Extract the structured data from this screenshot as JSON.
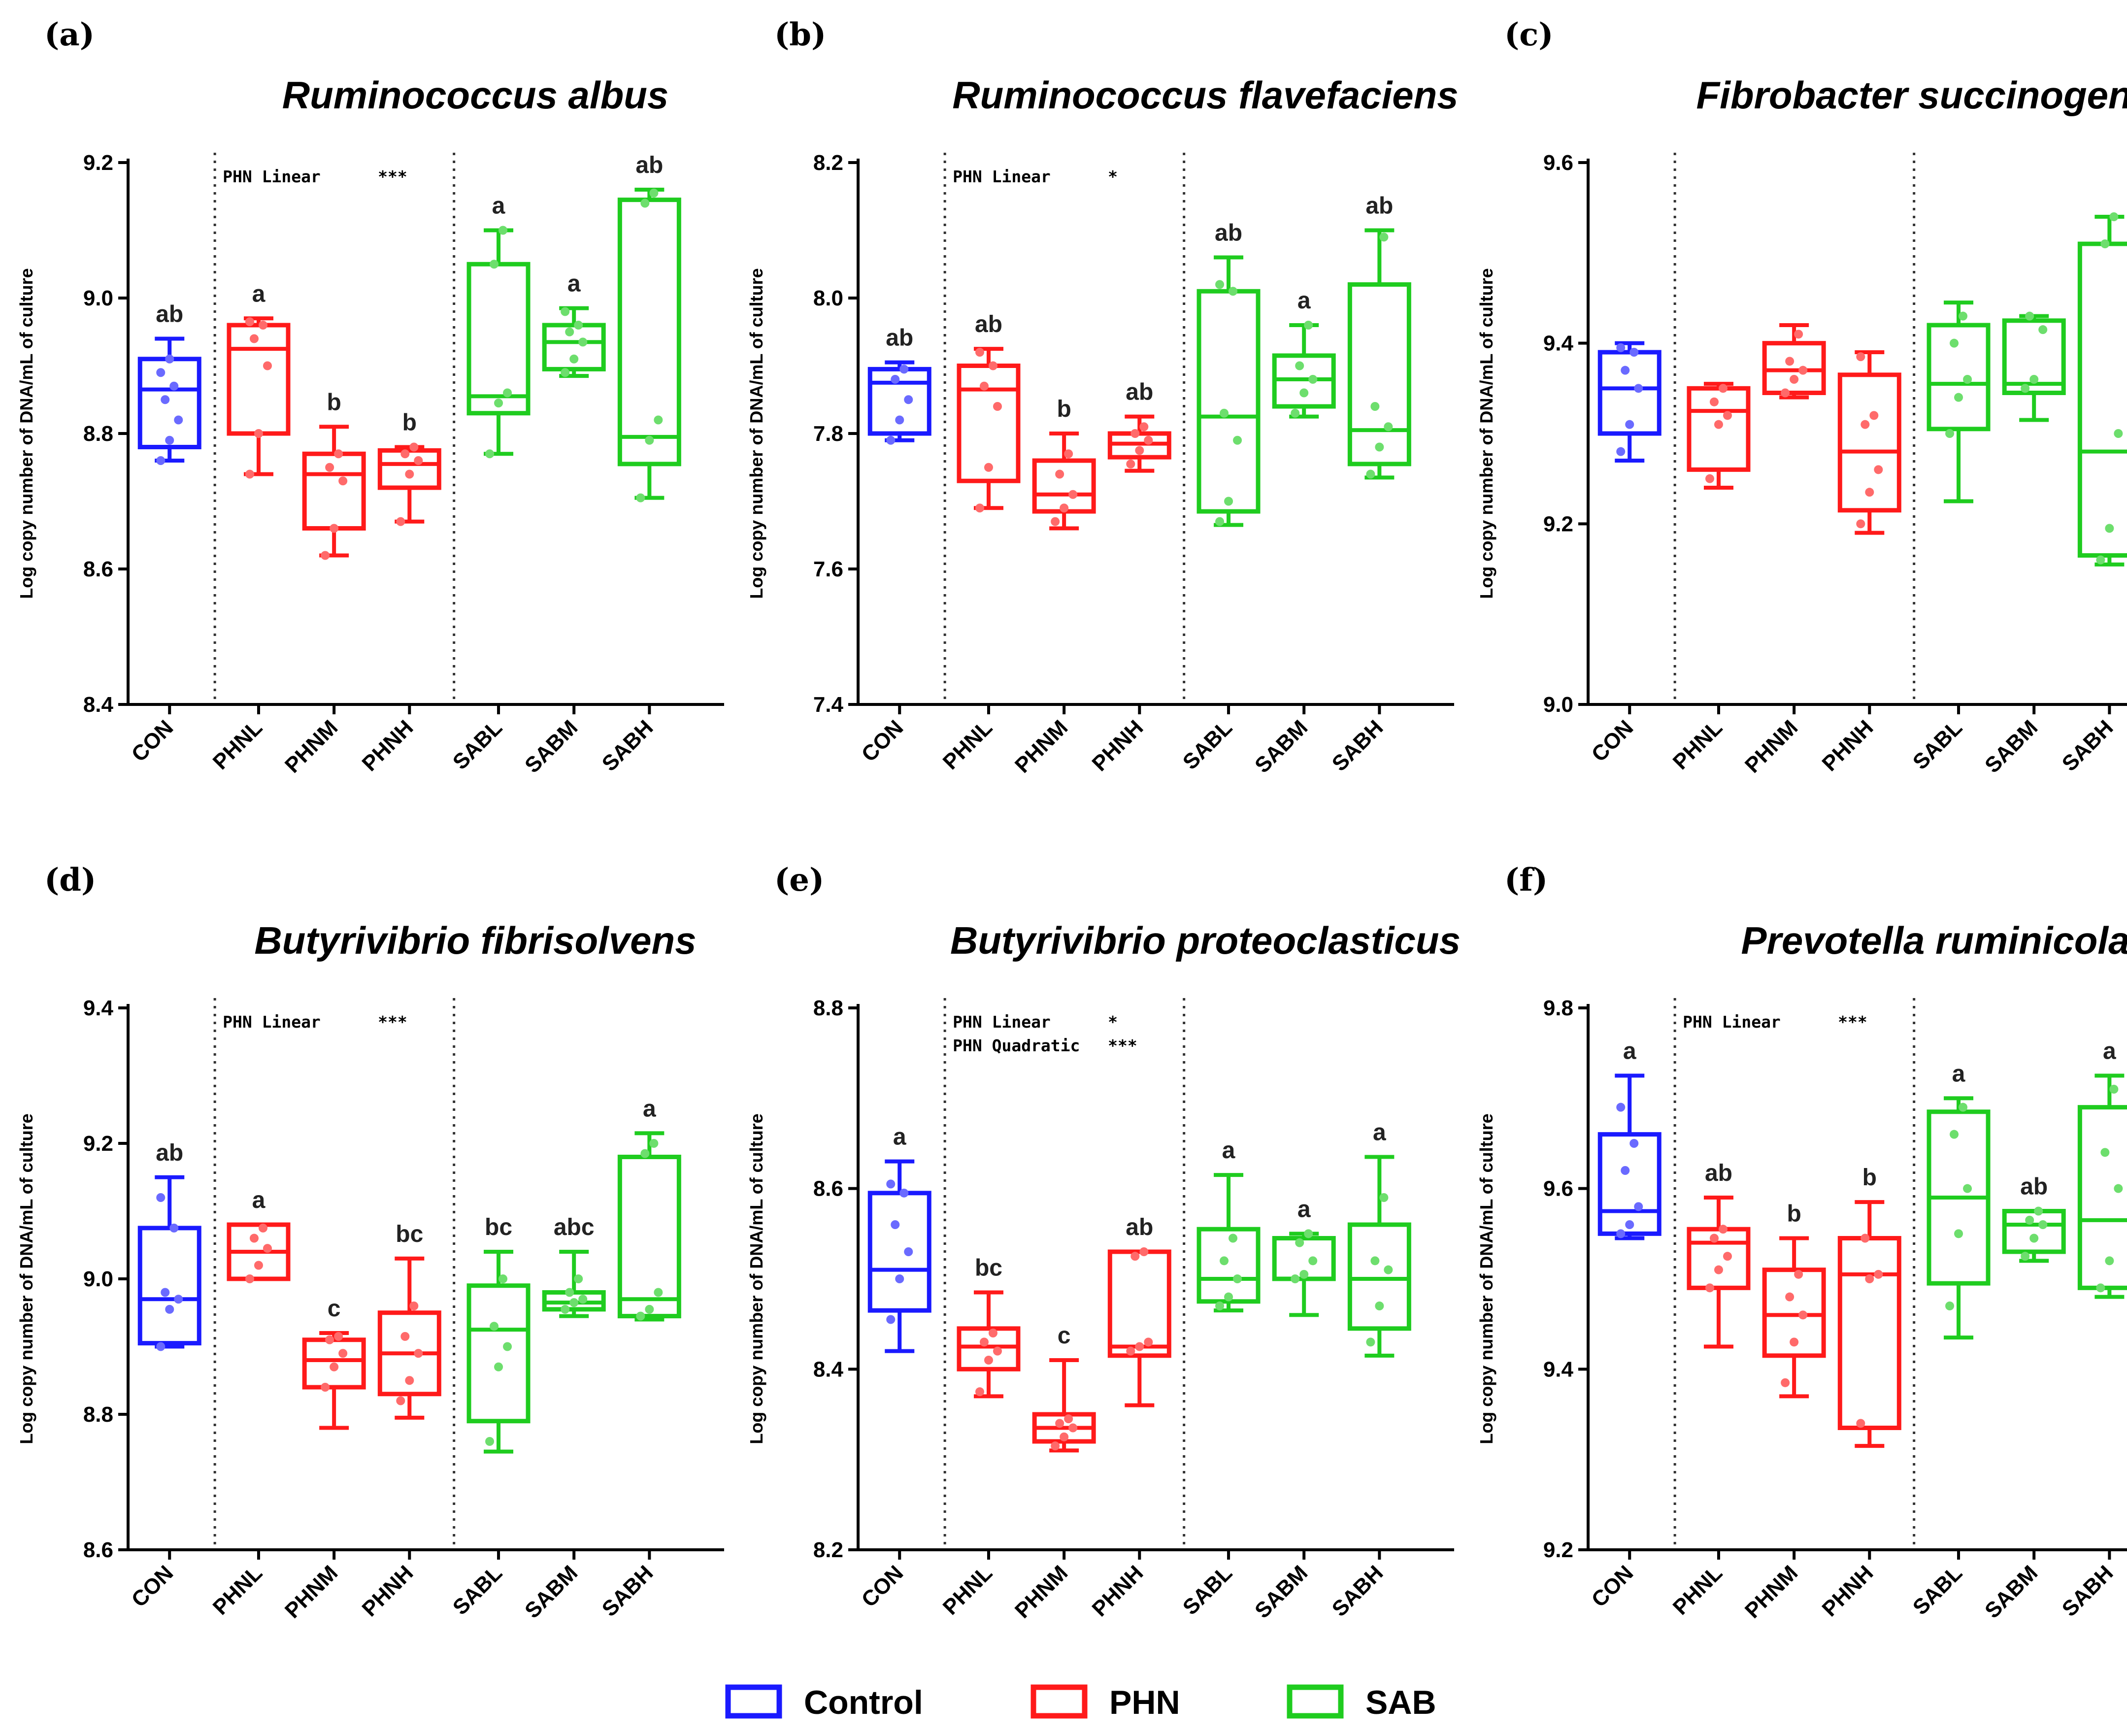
{
  "figure": {
    "y_axis_label": "Log copy number of DNA/mL of culture",
    "groups": {
      "Control": {
        "color": "#1a1aff"
      },
      "PHN": {
        "color": "#ff1a1a"
      },
      "SAB": {
        "color": "#1fcc1f"
      }
    },
    "legend": [
      {
        "name": "Control",
        "color": "#1a1aff"
      },
      {
        "name": "PHN",
        "color": "#ff1a1a"
      },
      {
        "name": "SAB",
        "color": "#1fcc1f"
      }
    ]
  },
  "chart_data": [
    {
      "type": "box",
      "label": "(a)",
      "title": "Ruminococcus albus",
      "ylabel": "Log copy number of DNA/mL of culture",
      "ylim": [
        8.4,
        9.2
      ],
      "yticks": [
        "8.4",
        "8.6",
        "8.8",
        "9.0",
        "9.2"
      ],
      "annotations": [
        {
          "text": "PHN Linear",
          "stars": "***"
        }
      ],
      "categories": [
        {
          "name": "CON",
          "group": "Control",
          "min": 8.76,
          "q1": 8.78,
          "median": 8.865,
          "q3": 8.91,
          "max": 8.94,
          "letter": "ab",
          "points": [
            8.76,
            8.79,
            8.82,
            8.85,
            8.87,
            8.89,
            8.91
          ]
        },
        {
          "name": "PHNL",
          "group": "PHN",
          "min": 8.74,
          "q1": 8.8,
          "median": 8.925,
          "q3": 8.96,
          "max": 8.97,
          "letter": "a",
          "points": [
            8.74,
            8.8,
            8.9,
            8.94,
            8.96,
            8.965
          ]
        },
        {
          "name": "PHNM",
          "group": "PHN",
          "min": 8.62,
          "q1": 8.66,
          "median": 8.74,
          "q3": 8.77,
          "max": 8.81,
          "letter": "b",
          "points": [
            8.62,
            8.66,
            8.73,
            8.75,
            8.77
          ]
        },
        {
          "name": "PHNH",
          "group": "PHN",
          "min": 8.67,
          "q1": 8.72,
          "median": 8.755,
          "q3": 8.775,
          "max": 8.78,
          "letter": "b",
          "points": [
            8.67,
            8.74,
            8.76,
            8.77,
            8.78
          ]
        },
        {
          "name": "SABL",
          "group": "SAB",
          "min": 8.77,
          "q1": 8.83,
          "median": 8.855,
          "q3": 9.05,
          "max": 9.1,
          "letter": "a",
          "points": [
            8.77,
            8.845,
            8.86,
            9.05,
            9.1
          ]
        },
        {
          "name": "SABM",
          "group": "SAB",
          "min": 8.885,
          "q1": 8.895,
          "median": 8.935,
          "q3": 8.96,
          "max": 8.985,
          "letter": "a",
          "points": [
            8.89,
            8.91,
            8.935,
            8.95,
            8.96,
            8.98
          ]
        },
        {
          "name": "SABH",
          "group": "SAB",
          "min": 8.705,
          "q1": 8.755,
          "median": 8.795,
          "q3": 9.145,
          "max": 9.16,
          "letter": "ab",
          "points": [
            8.705,
            8.79,
            8.82,
            9.14,
            9.155
          ]
        }
      ]
    },
    {
      "type": "box",
      "label": "(b)",
      "title": "Ruminococcus flavefaciens",
      "ylabel": "Log copy number of DNA/mL of culture",
      "ylim": [
        7.4,
        8.2
      ],
      "yticks": [
        "7.4",
        "7.6",
        "7.8",
        "8.0",
        "8.2"
      ],
      "annotations": [
        {
          "text": "PHN Linear",
          "stars": "*"
        }
      ],
      "categories": [
        {
          "name": "CON",
          "group": "Control",
          "min": 7.79,
          "q1": 7.8,
          "median": 7.875,
          "q3": 7.895,
          "max": 7.905,
          "letter": "ab",
          "points": [
            7.79,
            7.82,
            7.85,
            7.88,
            7.895
          ]
        },
        {
          "name": "PHNL",
          "group": "PHN",
          "min": 7.69,
          "q1": 7.73,
          "median": 7.865,
          "q3": 7.9,
          "max": 7.925,
          "letter": "ab",
          "points": [
            7.69,
            7.75,
            7.84,
            7.87,
            7.9,
            7.92
          ]
        },
        {
          "name": "PHNM",
          "group": "PHN",
          "min": 7.66,
          "q1": 7.685,
          "median": 7.71,
          "q3": 7.76,
          "max": 7.8,
          "letter": "b",
          "points": [
            7.67,
            7.69,
            7.71,
            7.74,
            7.77
          ]
        },
        {
          "name": "PHNH",
          "group": "PHN",
          "min": 7.745,
          "q1": 7.765,
          "median": 7.785,
          "q3": 7.8,
          "max": 7.825,
          "letter": "ab",
          "points": [
            7.755,
            7.775,
            7.79,
            7.8,
            7.81
          ]
        },
        {
          "name": "SABL",
          "group": "SAB",
          "min": 7.665,
          "q1": 7.685,
          "median": 7.825,
          "q3": 8.01,
          "max": 8.06,
          "letter": "ab",
          "points": [
            7.67,
            7.7,
            7.79,
            7.83,
            8.01,
            8.02
          ]
        },
        {
          "name": "SABM",
          "group": "SAB",
          "min": 7.825,
          "q1": 7.84,
          "median": 7.88,
          "q3": 7.915,
          "max": 7.96,
          "letter": "a",
          "points": [
            7.83,
            7.86,
            7.88,
            7.9,
            7.96
          ]
        },
        {
          "name": "SABH",
          "group": "SAB",
          "min": 7.735,
          "q1": 7.755,
          "median": 7.805,
          "q3": 8.02,
          "max": 8.1,
          "letter": "ab",
          "points": [
            7.74,
            7.78,
            7.81,
            7.84,
            8.09
          ]
        }
      ]
    },
    {
      "type": "box",
      "label": "(c)",
      "title": "Fibrobacter succinogenes",
      "ylabel": "Log copy number of DNA/mL of culture",
      "ylim": [
        9.0,
        9.6
      ],
      "yticks": [
        "9.0",
        "9.2",
        "9.4",
        "9.6"
      ],
      "annotations": [],
      "categories": [
        {
          "name": "CON",
          "group": "Control",
          "min": 9.27,
          "q1": 9.3,
          "median": 9.35,
          "q3": 9.39,
          "max": 9.4,
          "letter": "",
          "points": [
            9.28,
            9.31,
            9.35,
            9.37,
            9.39,
            9.395
          ]
        },
        {
          "name": "PHNL",
          "group": "PHN",
          "min": 9.24,
          "q1": 9.26,
          "median": 9.325,
          "q3": 9.35,
          "max": 9.355,
          "letter": "",
          "points": [
            9.25,
            9.31,
            9.32,
            9.335,
            9.35
          ]
        },
        {
          "name": "PHNM",
          "group": "PHN",
          "min": 9.34,
          "q1": 9.345,
          "median": 9.37,
          "q3": 9.4,
          "max": 9.42,
          "letter": "",
          "points": [
            9.345,
            9.36,
            9.37,
            9.38,
            9.41
          ]
        },
        {
          "name": "PHNH",
          "group": "PHN",
          "min": 9.19,
          "q1": 9.215,
          "median": 9.28,
          "q3": 9.365,
          "max": 9.39,
          "letter": "",
          "points": [
            9.2,
            9.235,
            9.26,
            9.31,
            9.32,
            9.385
          ]
        },
        {
          "name": "SABL",
          "group": "SAB",
          "min": 9.225,
          "q1": 9.305,
          "median": 9.355,
          "q3": 9.42,
          "max": 9.445,
          "letter": "",
          "points": [
            9.3,
            9.34,
            9.36,
            9.4,
            9.43
          ]
        },
        {
          "name": "SABM",
          "group": "SAB",
          "min": 9.315,
          "q1": 9.345,
          "median": 9.355,
          "q3": 9.425,
          "max": 9.43,
          "letter": "",
          "points": [
            9.35,
            9.36,
            9.415,
            9.43
          ]
        },
        {
          "name": "SABH",
          "group": "SAB",
          "min": 9.155,
          "q1": 9.165,
          "median": 9.28,
          "q3": 9.51,
          "max": 9.54,
          "letter": "",
          "points": [
            9.16,
            9.195,
            9.3,
            9.51,
            9.54
          ]
        }
      ]
    },
    {
      "type": "box",
      "label": "(d)",
      "title": "Butyrivibrio fibrisolvens",
      "ylabel": "Log copy number of DNA/mL of culture",
      "ylim": [
        8.6,
        9.4
      ],
      "yticks": [
        "8.6",
        "8.8",
        "9.0",
        "9.2",
        "9.4"
      ],
      "annotations": [
        {
          "text": "PHN Linear",
          "stars": "***"
        }
      ],
      "categories": [
        {
          "name": "CON",
          "group": "Control",
          "min": 8.9,
          "q1": 8.905,
          "median": 8.97,
          "q3": 9.075,
          "max": 9.15,
          "letter": "ab",
          "points": [
            8.9,
            8.955,
            8.97,
            8.98,
            9.075,
            9.12
          ]
        },
        {
          "name": "PHNL",
          "group": "PHN",
          "min": 9.0,
          "q1": 9.0,
          "median": 9.04,
          "q3": 9.08,
          "max": 9.08,
          "letter": "a",
          "points": [
            9.0,
            9.02,
            9.045,
            9.06,
            9.075
          ]
        },
        {
          "name": "PHNM",
          "group": "PHN",
          "min": 8.78,
          "q1": 8.84,
          "median": 8.88,
          "q3": 8.91,
          "max": 8.92,
          "letter": "c",
          "points": [
            8.84,
            8.87,
            8.89,
            8.91,
            8.915
          ]
        },
        {
          "name": "PHNH",
          "group": "PHN",
          "min": 8.795,
          "q1": 8.83,
          "median": 8.89,
          "q3": 8.95,
          "max": 9.03,
          "letter": "bc",
          "points": [
            8.82,
            8.85,
            8.89,
            8.915,
            8.96
          ]
        },
        {
          "name": "SABL",
          "group": "SAB",
          "min": 8.745,
          "q1": 8.79,
          "median": 8.925,
          "q3": 8.99,
          "max": 9.04,
          "letter": "bc",
          "points": [
            8.76,
            8.87,
            8.9,
            8.93,
            9.0
          ]
        },
        {
          "name": "SABM",
          "group": "SAB",
          "min": 8.945,
          "q1": 8.955,
          "median": 8.965,
          "q3": 8.98,
          "max": 9.04,
          "letter": "abc",
          "points": [
            8.955,
            8.965,
            8.97,
            8.98,
            9.0
          ]
        },
        {
          "name": "SABH",
          "group": "SAB",
          "min": 8.94,
          "q1": 8.945,
          "median": 8.97,
          "q3": 9.18,
          "max": 9.215,
          "letter": "a",
          "points": [
            8.945,
            8.955,
            8.98,
            9.185,
            9.2
          ]
        }
      ]
    },
    {
      "type": "box",
      "label": "(e)",
      "title": "Butyrivibrio proteoclasticus",
      "ylabel": "Log copy number of DNA/mL of culture",
      "ylim": [
        8.2,
        8.8
      ],
      "yticks": [
        "8.2",
        "8.4",
        "8.6",
        "8.8"
      ],
      "annotations": [
        {
          "text": "PHN Linear",
          "stars": "*"
        },
        {
          "text": "PHN Quadratic",
          "stars": "***"
        }
      ],
      "categories": [
        {
          "name": "CON",
          "group": "Control",
          "min": 8.42,
          "q1": 8.465,
          "median": 8.51,
          "q3": 8.595,
          "max": 8.63,
          "letter": "a",
          "points": [
            8.455,
            8.5,
            8.53,
            8.56,
            8.595,
            8.605
          ]
        },
        {
          "name": "PHNL",
          "group": "PHN",
          "min": 8.37,
          "q1": 8.4,
          "median": 8.425,
          "q3": 8.445,
          "max": 8.485,
          "letter": "bc",
          "points": [
            8.375,
            8.41,
            8.42,
            8.43,
            8.44
          ]
        },
        {
          "name": "PHNM",
          "group": "PHN",
          "min": 8.31,
          "q1": 8.32,
          "median": 8.335,
          "q3": 8.35,
          "max": 8.41,
          "letter": "c",
          "points": [
            8.315,
            8.325,
            8.335,
            8.34,
            8.345
          ]
        },
        {
          "name": "PHNH",
          "group": "PHN",
          "min": 8.36,
          "q1": 8.415,
          "median": 8.425,
          "q3": 8.53,
          "max": 8.53,
          "letter": "ab",
          "points": [
            8.42,
            8.425,
            8.43,
            8.525,
            8.53
          ]
        },
        {
          "name": "SABL",
          "group": "SAB",
          "min": 8.465,
          "q1": 8.475,
          "median": 8.5,
          "q3": 8.555,
          "max": 8.615,
          "letter": "a",
          "points": [
            8.47,
            8.48,
            8.5,
            8.52,
            8.545
          ]
        },
        {
          "name": "SABM",
          "group": "SAB",
          "min": 8.46,
          "q1": 8.5,
          "median": 8.5,
          "q3": 8.545,
          "max": 8.55,
          "letter": "a",
          "points": [
            8.5,
            8.505,
            8.52,
            8.54,
            8.55
          ]
        },
        {
          "name": "SABH",
          "group": "SAB",
          "min": 8.415,
          "q1": 8.445,
          "median": 8.5,
          "q3": 8.56,
          "max": 8.635,
          "letter": "a",
          "points": [
            8.43,
            8.47,
            8.51,
            8.52,
            8.59
          ]
        }
      ]
    },
    {
      "type": "box",
      "label": "(f)",
      "title": "Prevotella ruminicola",
      "ylabel": "Log copy number of DNA/mL of culture",
      "ylim": [
        9.2,
        9.8
      ],
      "yticks": [
        "9.2",
        "9.4",
        "9.6",
        "9.8"
      ],
      "annotations": [
        {
          "text": "PHN Linear",
          "stars": "***"
        }
      ],
      "categories": [
        {
          "name": "CON",
          "group": "Control",
          "min": 9.545,
          "q1": 9.55,
          "median": 9.575,
          "q3": 9.66,
          "max": 9.725,
          "letter": "a",
          "points": [
            9.55,
            9.56,
            9.58,
            9.62,
            9.65,
            9.69
          ]
        },
        {
          "name": "PHNL",
          "group": "PHN",
          "min": 9.425,
          "q1": 9.49,
          "median": 9.54,
          "q3": 9.555,
          "max": 9.59,
          "letter": "ab",
          "points": [
            9.49,
            9.51,
            9.525,
            9.545,
            9.555
          ]
        },
        {
          "name": "PHNM",
          "group": "PHN",
          "min": 9.37,
          "q1": 9.415,
          "median": 9.46,
          "q3": 9.51,
          "max": 9.545,
          "letter": "b",
          "points": [
            9.385,
            9.43,
            9.46,
            9.48,
            9.505
          ]
        },
        {
          "name": "PHNH",
          "group": "PHN",
          "min": 9.315,
          "q1": 9.335,
          "median": 9.505,
          "q3": 9.545,
          "max": 9.585,
          "letter": "b",
          "points": [
            9.34,
            9.5,
            9.505,
            9.545
          ]
        },
        {
          "name": "SABL",
          "group": "SAB",
          "min": 9.435,
          "q1": 9.495,
          "median": 9.59,
          "q3": 9.685,
          "max": 9.7,
          "letter": "a",
          "points": [
            9.47,
            9.55,
            9.6,
            9.66,
            9.69
          ]
        },
        {
          "name": "SABM",
          "group": "SAB",
          "min": 9.52,
          "q1": 9.53,
          "median": 9.56,
          "q3": 9.575,
          "max": 9.575,
          "letter": "ab",
          "points": [
            9.525,
            9.545,
            9.56,
            9.565,
            9.575
          ]
        },
        {
          "name": "SABH",
          "group": "SAB",
          "min": 9.48,
          "q1": 9.49,
          "median": 9.565,
          "q3": 9.69,
          "max": 9.725,
          "letter": "a",
          "points": [
            9.49,
            9.52,
            9.6,
            9.64,
            9.71
          ]
        }
      ]
    }
  ]
}
